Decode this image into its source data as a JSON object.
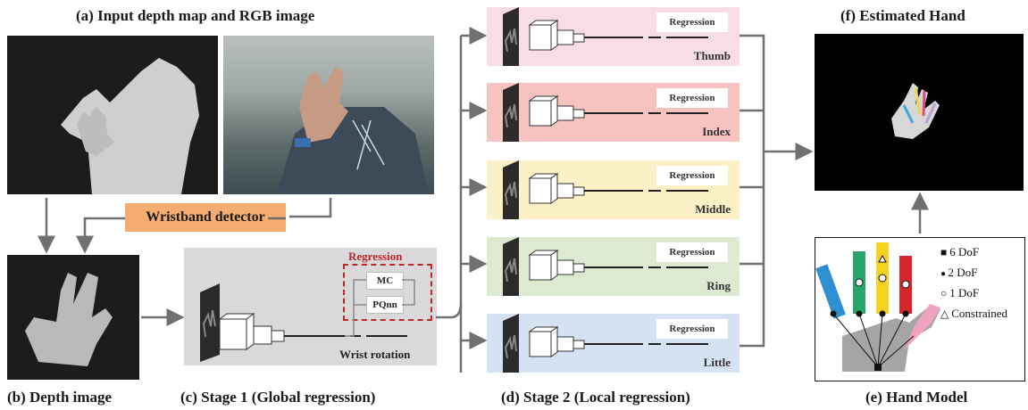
{
  "panels": {
    "a": {
      "title": "(a) Input depth map and RGB image"
    },
    "b": {
      "caption": "(b) Depth image"
    },
    "c": {
      "caption": "(c) Stage 1 (Global regression)",
      "regression_title": "Regression",
      "mc_label": "MC",
      "pqnn_label": "PQnn",
      "wrist_label": "Wrist rotation"
    },
    "d": {
      "caption": "(d) Stage 2 (Local regression)"
    },
    "e": {
      "caption": "(e) Hand Model"
    },
    "f": {
      "title": "(f) Estimated Hand"
    }
  },
  "wristband_detector": "Wristband detector",
  "stages": [
    {
      "name": "Thumb",
      "regression": "Regression",
      "color": "#f9dde6"
    },
    {
      "name": "Index",
      "regression": "Regression",
      "color": "#f6c3c0"
    },
    {
      "name": "Middle",
      "regression": "Regression",
      "color": "#fbf0c6"
    },
    {
      "name": "Ring",
      "regression": "Regression",
      "color": "#dde9d1"
    },
    {
      "name": "Little",
      "regression": "Regression",
      "color": "#d5e2f1"
    }
  ],
  "legend": [
    {
      "symbol": "square",
      "label": "6 DoF"
    },
    {
      "symbol": "dot",
      "label": "2 DoF"
    },
    {
      "symbol": "circle",
      "label": "1 DoF"
    },
    {
      "symbol": "triangle",
      "label": "Constrained"
    }
  ],
  "colors": {
    "wristband": "#f4ad6e",
    "stage1_bg": "#d9d9d9",
    "regression_dashed": "#c0272d",
    "arrow": "#707070"
  }
}
